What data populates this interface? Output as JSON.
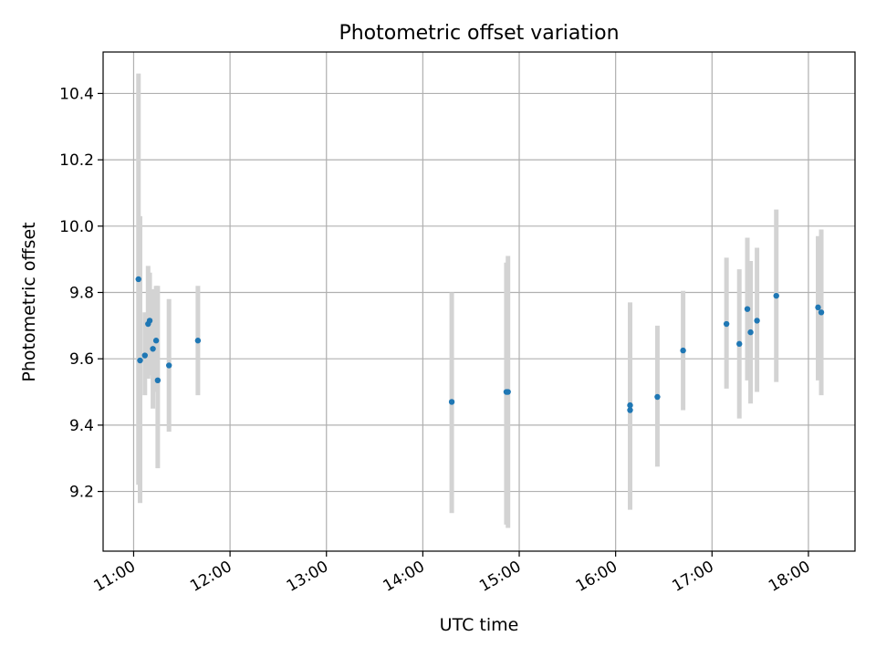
{
  "chart_data": {
    "type": "scatter",
    "title": "Photometric offset variation",
    "xlabel": "UTC time",
    "ylabel": "Photometric offset",
    "x_ticks": [
      "11:00",
      "12:00",
      "13:00",
      "14:00",
      "15:00",
      "16:00",
      "17:00",
      "18:00"
    ],
    "y_ticks": [
      "9.2",
      "9.4",
      "9.6",
      "9.8",
      "10.0",
      "10.2",
      "10.4"
    ],
    "xlim": [
      "10:41",
      "18:29"
    ],
    "ylim": [
      9.02,
      10.525
    ],
    "grid": true,
    "colors": {
      "point": "#1f77b4",
      "errorbar": "#d3d3d3",
      "grid": "#b0b0b0"
    },
    "points": [
      {
        "time": "11:03",
        "y": 9.84,
        "yerr_low": 9.22,
        "yerr_high": 10.46
      },
      {
        "time": "11:04",
        "y": 9.595,
        "yerr_low": 9.165,
        "yerr_high": 10.03
      },
      {
        "time": "11:07",
        "y": 9.61,
        "yerr_low": 9.49,
        "yerr_high": 9.74
      },
      {
        "time": "11:09",
        "y": 9.705,
        "yerr_low": 9.54,
        "yerr_high": 9.88
      },
      {
        "time": "11:10",
        "y": 9.715,
        "yerr_low": 9.55,
        "yerr_high": 9.86
      },
      {
        "time": "11:12",
        "y": 9.63,
        "yerr_low": 9.45,
        "yerr_high": 9.81
      },
      {
        "time": "11:14",
        "y": 9.655,
        "yerr_low": 9.5,
        "yerr_high": 9.82
      },
      {
        "time": "11:15",
        "y": 9.535,
        "yerr_low": 9.27,
        "yerr_high": 9.82
      },
      {
        "time": "11:22",
        "y": 9.58,
        "yerr_low": 9.38,
        "yerr_high": 9.78
      },
      {
        "time": "11:40",
        "y": 9.655,
        "yerr_low": 9.49,
        "yerr_high": 9.82
      },
      {
        "time": "14:18",
        "y": 9.47,
        "yerr_low": 9.135,
        "yerr_high": 9.8
      },
      {
        "time": "14:52",
        "y": 9.5,
        "yerr_low": 9.1,
        "yerr_high": 9.89
      },
      {
        "time": "14:53",
        "y": 9.5,
        "yerr_low": 9.09,
        "yerr_high": 9.91
      },
      {
        "time": "16:09",
        "y": 9.445,
        "yerr_low": 9.16,
        "yerr_high": 9.73
      },
      {
        "time": "16:09",
        "y": 9.46,
        "yerr_low": 9.145,
        "yerr_high": 9.77
      },
      {
        "time": "16:26",
        "y": 9.485,
        "yerr_low": 9.275,
        "yerr_high": 9.7
      },
      {
        "time": "16:42",
        "y": 9.625,
        "yerr_low": 9.445,
        "yerr_high": 9.805
      },
      {
        "time": "17:09",
        "y": 9.705,
        "yerr_low": 9.51,
        "yerr_high": 9.905
      },
      {
        "time": "17:17",
        "y": 9.645,
        "yerr_low": 9.42,
        "yerr_high": 9.87
      },
      {
        "time": "17:22",
        "y": 9.75,
        "yerr_low": 9.535,
        "yerr_high": 9.965
      },
      {
        "time": "17:24",
        "y": 9.68,
        "yerr_low": 9.465,
        "yerr_high": 9.895
      },
      {
        "time": "17:28",
        "y": 9.715,
        "yerr_low": 9.5,
        "yerr_high": 9.935
      },
      {
        "time": "17:40",
        "y": 9.79,
        "yerr_low": 9.53,
        "yerr_high": 10.05
      },
      {
        "time": "18:06",
        "y": 9.755,
        "yerr_low": 9.535,
        "yerr_high": 9.97
      },
      {
        "time": "18:08",
        "y": 9.74,
        "yerr_low": 9.49,
        "yerr_high": 9.99
      }
    ]
  }
}
